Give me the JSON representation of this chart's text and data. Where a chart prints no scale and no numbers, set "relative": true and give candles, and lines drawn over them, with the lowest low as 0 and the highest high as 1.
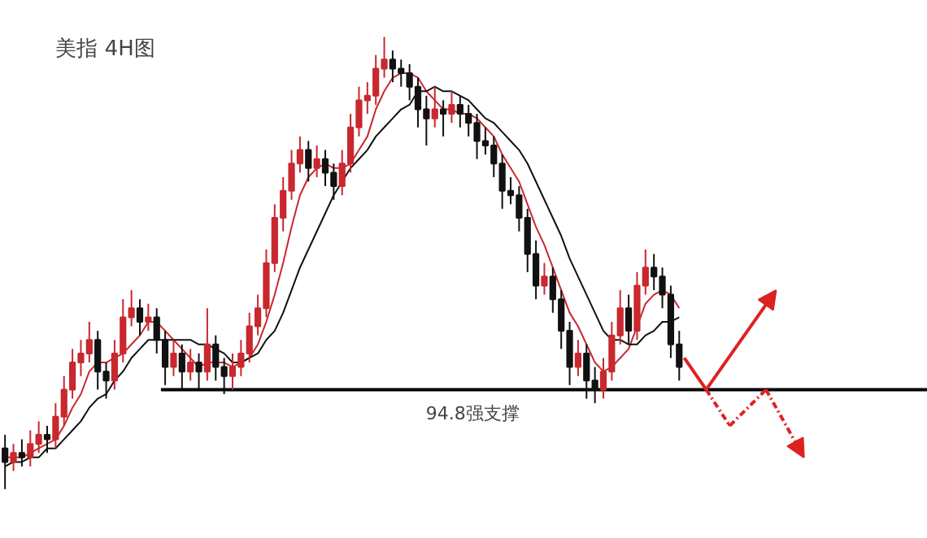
{
  "chart_data": {
    "type": "candlestick",
    "title": "美指    4H图",
    "relative": true,
    "categories": [
      null,
      null,
      null,
      null,
      null,
      null,
      null,
      null,
      null,
      null,
      null,
      null,
      null,
      null,
      null,
      null,
      null,
      null,
      null,
      null,
      null,
      null,
      null,
      null,
      null,
      null,
      null,
      null,
      null,
      null,
      null,
      null,
      null,
      null,
      null,
      null,
      null,
      null,
      null,
      null,
      null,
      null,
      null,
      null,
      null,
      null,
      null,
      null,
      null,
      null,
      null,
      null,
      null,
      null,
      null,
      null,
      null,
      null,
      null,
      null,
      null,
      null,
      null,
      null,
      null,
      null,
      null,
      null,
      null,
      null,
      null,
      null,
      null,
      null,
      null,
      null,
      null,
      null,
      null,
      null,
      null
    ],
    "ohlc": [
      [
        0.09,
        0.12,
        0,
        0.06
      ],
      [
        0.06,
        0.1,
        0.04,
        0.08
      ],
      [
        0.08,
        0.11,
        0.05,
        0.07
      ],
      [
        0.07,
        0.13,
        0.05,
        0.1
      ],
      [
        0.1,
        0.15,
        0.08,
        0.12
      ],
      [
        0.12,
        0.14,
        0.08,
        0.11
      ],
      [
        0.11,
        0.19,
        0.09,
        0.16
      ],
      [
        0.16,
        0.25,
        0.14,
        0.22
      ],
      [
        0.22,
        0.31,
        0.2,
        0.28
      ],
      [
        0.28,
        0.33,
        0.25,
        0.3
      ],
      [
        0.3,
        0.37,
        0.28,
        0.33
      ],
      [
        0.33,
        0.35,
        0.22,
        0.26
      ],
      [
        0.26,
        0.28,
        0.2,
        0.24
      ],
      [
        0.24,
        0.33,
        0.22,
        0.3
      ],
      [
        0.3,
        0.42,
        0.28,
        0.38
      ],
      [
        0.38,
        0.44,
        0.36,
        0.4
      ],
      [
        0.4,
        0.42,
        0.34,
        0.37
      ],
      [
        0.37,
        0.41,
        0.35,
        0.38
      ],
      [
        0.38,
        0.4,
        0.3,
        0.33
      ],
      [
        0.33,
        0.35,
        0.23,
        0.27
      ],
      [
        0.27,
        0.33,
        0.25,
        0.3
      ],
      [
        0.3,
        0.32,
        0.22,
        0.26
      ],
      [
        0.26,
        0.31,
        0.24,
        0.28
      ],
      [
        0.28,
        0.3,
        0.22,
        0.26
      ],
      [
        0.26,
        0.4,
        0.24,
        0.32
      ],
      [
        0.32,
        0.34,
        0.24,
        0.27
      ],
      [
        0.27,
        0.29,
        0.21,
        0.25
      ],
      [
        0.25,
        0.3,
        0.22,
        0.27
      ],
      [
        0.27,
        0.33,
        0.25,
        0.3
      ],
      [
        0.3,
        0.39,
        0.28,
        0.36
      ],
      [
        0.36,
        0.43,
        0.34,
        0.4
      ],
      [
        0.4,
        0.53,
        0.38,
        0.5
      ],
      [
        0.5,
        0.63,
        0.48,
        0.6
      ],
      [
        0.6,
        0.69,
        0.57,
        0.66
      ],
      [
        0.66,
        0.75,
        0.64,
        0.72
      ],
      [
        0.72,
        0.78,
        0.7,
        0.75
      ],
      [
        0.75,
        0.77,
        0.68,
        0.71
      ],
      [
        0.71,
        0.76,
        0.69,
        0.73
      ],
      [
        0.73,
        0.75,
        0.67,
        0.7
      ],
      [
        0.7,
        0.72,
        0.64,
        0.67
      ],
      [
        0.67,
        0.75,
        0.65,
        0.72
      ],
      [
        0.72,
        0.83,
        0.7,
        0.8
      ],
      [
        0.8,
        0.89,
        0.78,
        0.86
      ],
      [
        0.86,
        0.9,
        0.83,
        0.87
      ],
      [
        0.87,
        0.96,
        0.85,
        0.93
      ],
      [
        0.93,
        1,
        0.91,
        0.95
      ],
      [
        0.95,
        0.97,
        0.9,
        0.93
      ],
      [
        0.93,
        0.95,
        0.89,
        0.92
      ],
      [
        0.92,
        0.94,
        0.86,
        0.89
      ],
      [
        0.89,
        0.91,
        0.8,
        0.84
      ],
      [
        0.84,
        0.87,
        0.76,
        0.82
      ],
      [
        0.82,
        0.89,
        0.8,
        0.84
      ],
      [
        0.84,
        0.86,
        0.78,
        0.83
      ],
      [
        0.83,
        0.88,
        0.81,
        0.85
      ],
      [
        0.85,
        0.87,
        0.8,
        0.83
      ],
      [
        0.83,
        0.85,
        0.78,
        0.81
      ],
      [
        0.81,
        0.83,
        0.73,
        0.77
      ],
      [
        0.77,
        0.8,
        0.74,
        0.76
      ],
      [
        0.76,
        0.78,
        0.69,
        0.72
      ],
      [
        0.72,
        0.74,
        0.62,
        0.66
      ],
      [
        0.66,
        0.69,
        0.63,
        0.65
      ],
      [
        0.65,
        0.67,
        0.57,
        0.6
      ],
      [
        0.6,
        0.62,
        0.48,
        0.52
      ],
      [
        0.52,
        0.55,
        0.42,
        0.45
      ],
      [
        0.45,
        0.5,
        0.43,
        0.47
      ],
      [
        0.47,
        0.49,
        0.39,
        0.42
      ],
      [
        0.42,
        0.44,
        0.31,
        0.35
      ],
      [
        0.35,
        0.37,
        0.23,
        0.27
      ],
      [
        0.27,
        0.33,
        0.25,
        0.3
      ],
      [
        0.3,
        0.32,
        0.2,
        0.24
      ],
      [
        0.24,
        0.27,
        0.19,
        0.22
      ],
      [
        0.22,
        0.29,
        0.2,
        0.26
      ],
      [
        0.26,
        0.37,
        0.24,
        0.34
      ],
      [
        0.34,
        0.44,
        0.32,
        0.4
      ],
      [
        0.4,
        0.43,
        0.32,
        0.35
      ],
      [
        0.35,
        0.48,
        0.33,
        0.45
      ],
      [
        0.45,
        0.53,
        0.43,
        0.49
      ],
      [
        0.49,
        0.52,
        0.44,
        0.47
      ],
      [
        0.47,
        0.49,
        0.4,
        0.43
      ],
      [
        0.43,
        0.45,
        0.29,
        0.32
      ],
      [
        0.32,
        0.35,
        0.24,
        0.27
      ]
    ],
    "colors": [
      "#111111",
      "#c8282e",
      "#111111",
      "#c8282e",
      "#c8282e",
      "#111111",
      "#c8282e",
      "#c8282e",
      "#c8282e",
      "#c8282e",
      "#c8282e",
      "#111111",
      "#111111",
      "#c8282e",
      "#c8282e",
      "#c8282e",
      "#111111",
      "#c8282e",
      "#111111",
      "#111111",
      "#c8282e",
      "#111111",
      "#c8282e",
      "#111111",
      "#c8282e",
      "#111111",
      "#111111",
      "#c8282e",
      "#c8282e",
      "#c8282e",
      "#c8282e",
      "#c8282e",
      "#c8282e",
      "#c8282e",
      "#c8282e",
      "#c8282e",
      "#111111",
      "#c8282e",
      "#111111",
      "#111111",
      "#c8282e",
      "#c8282e",
      "#c8282e",
      "#c8282e",
      "#c8282e",
      "#c8282e",
      "#111111",
      "#111111",
      "#111111",
      "#111111",
      "#111111",
      "#c8282e",
      "#111111",
      "#c8282e",
      "#111111",
      "#111111",
      "#111111",
      "#111111",
      "#111111",
      "#111111",
      "#111111",
      "#111111",
      "#111111",
      "#111111",
      "#c8282e",
      "#111111",
      "#111111",
      "#111111",
      "#c8282e",
      "#111111",
      "#111111",
      "#c8282e",
      "#c8282e",
      "#c8282e",
      "#111111",
      "#c8282e",
      "#c8282e",
      "#111111",
      "#111111",
      "#111111",
      "#111111"
    ],
    "series": [
      {
        "type": "line",
        "color": "#c8282e",
        "values": [
          0.07,
          0.07,
          0.07,
          0.08,
          0.09,
          0.1,
          0.11,
          0.14,
          0.18,
          0.21,
          0.26,
          0.28,
          0.28,
          0.29,
          0.3,
          0.32,
          0.34,
          0.37,
          0.37,
          0.35,
          0.33,
          0.31,
          0.29,
          0.27,
          0.28,
          0.28,
          0.28,
          0.27,
          0.28,
          0.29,
          0.32,
          0.37,
          0.43,
          0.5,
          0.58,
          0.65,
          0.69,
          0.71,
          0.72,
          0.71,
          0.71,
          0.72,
          0.75,
          0.78,
          0.84,
          0.88,
          0.91,
          0.92,
          0.92,
          0.91,
          0.88,
          0.86,
          0.84,
          0.84,
          0.83,
          0.83,
          0.82,
          0.8,
          0.78,
          0.74,
          0.71,
          0.68,
          0.63,
          0.58,
          0.54,
          0.49,
          0.44,
          0.39,
          0.36,
          0.32,
          0.28,
          0.26,
          0.27,
          0.29,
          0.31,
          0.36,
          0.41,
          0.43,
          0.44,
          0.43,
          0.4
        ]
      },
      {
        "type": "line",
        "color": "#111111",
        "values": [
          0.05,
          0.06,
          0.06,
          0.07,
          0.07,
          0.09,
          0.09,
          0.11,
          0.13,
          0.15,
          0.18,
          0.2,
          0.21,
          0.24,
          0.26,
          0.29,
          0.31,
          0.33,
          0.33,
          0.33,
          0.33,
          0.33,
          0.33,
          0.32,
          0.32,
          0.31,
          0.3,
          0.28,
          0.28,
          0.29,
          0.3,
          0.33,
          0.35,
          0.39,
          0.44,
          0.49,
          0.53,
          0.57,
          0.61,
          0.65,
          0.68,
          0.71,
          0.73,
          0.75,
          0.78,
          0.8,
          0.82,
          0.84,
          0.85,
          0.88,
          0.88,
          0.89,
          0.88,
          0.88,
          0.87,
          0.86,
          0.84,
          0.82,
          0.81,
          0.79,
          0.77,
          0.75,
          0.72,
          0.68,
          0.64,
          0.6,
          0.56,
          0.51,
          0.47,
          0.43,
          0.39,
          0.35,
          0.33,
          0.33,
          0.32,
          0.32,
          0.34,
          0.35,
          0.37,
          0.37,
          0.38
        ]
      }
    ],
    "ref_lines": [
      {
        "axis": "y",
        "value": 0.22,
        "label": "94.8强支撑",
        "color": "#000000"
      }
    ],
    "grid": false
  }
}
